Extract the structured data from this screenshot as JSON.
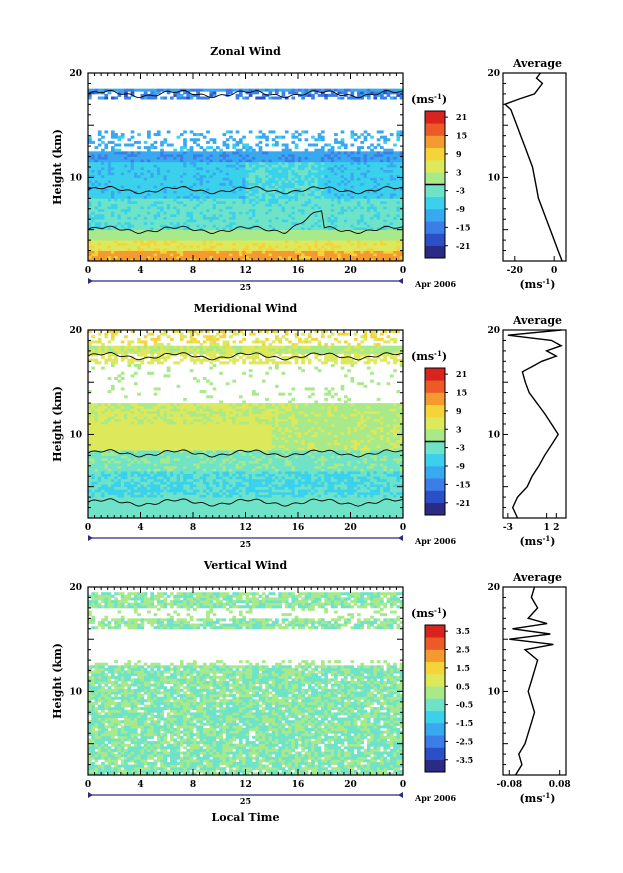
{
  "chart_data": [
    {
      "type": "heatmap",
      "title": "Zonal Wind",
      "ylabel": "Height (km)",
      "x_ticks": [
        "0",
        "4",
        "8",
        "12",
        "16",
        "20",
        "0"
      ],
      "y_ticks": [
        "20",
        "10"
      ],
      "ylim": [
        2,
        20
      ],
      "xlim": [
        0,
        24
      ],
      "day_label": "25",
      "month_label": "Apr 2006",
      "colorbar": {
        "unit_label": "(ms",
        "unit_exp": "-1",
        "unit_close": ")",
        "ticks": [
          "21",
          "15",
          "9",
          "3",
          "-3",
          "-9",
          "-15",
          "-21"
        ],
        "range": [
          -24,
          24
        ],
        "zero_line_value": 0
      },
      "average": {
        "title": "Average",
        "x_ticks": [
          "-20",
          "0"
        ],
        "xlim": [
          -26,
          6
        ],
        "unit_label": "(ms",
        "unit_exp": "-1",
        "unit_close": ")",
        "y_ticks": [
          "20",
          "10"
        ],
        "profile": [
          [
            2,
            4
          ],
          [
            3,
            2
          ],
          [
            4,
            0
          ],
          [
            5,
            -2
          ],
          [
            6,
            -4
          ],
          [
            7,
            -6
          ],
          [
            8,
            -8
          ],
          [
            9,
            -9
          ],
          [
            10,
            -10
          ],
          [
            11,
            -11
          ],
          [
            12,
            -13
          ],
          [
            13,
            -15
          ],
          [
            14,
            -17
          ],
          [
            15,
            -19
          ],
          [
            16,
            -21
          ],
          [
            16.5,
            -22
          ],
          [
            17,
            -25
          ],
          [
            17.5,
            -18
          ],
          [
            18,
            -10
          ],
          [
            18.5,
            -8
          ],
          [
            19,
            -6
          ],
          [
            19.5,
            -9
          ],
          [
            20,
            -7
          ]
        ]
      }
    },
    {
      "type": "heatmap",
      "title": "Meridional Wind",
      "ylabel": "Height (km)",
      "x_ticks": [
        "0",
        "4",
        "8",
        "12",
        "16",
        "20",
        "0"
      ],
      "y_ticks": [
        "20",
        "10"
      ],
      "ylim": [
        2,
        20
      ],
      "xlim": [
        0,
        24
      ],
      "day_label": "25",
      "month_label": "Apr 2006",
      "colorbar": {
        "unit_label": "(ms",
        "unit_exp": "-1",
        "unit_close": ")",
        "ticks": [
          "21",
          "15",
          "9",
          "3",
          "-3",
          "-9",
          "-15",
          "-21"
        ],
        "range": [
          -24,
          24
        ],
        "zero_line_value": 0
      },
      "average": {
        "title": "Average",
        "x_ticks": [
          "-3",
          "1",
          "2"
        ],
        "xlim": [
          -3.5,
          3
        ],
        "unit_label": "(ms",
        "unit_exp": "-1",
        "unit_close": ")",
        "y_ticks": [
          "20",
          "10"
        ],
        "profile": [
          [
            2,
            -2
          ],
          [
            3,
            -2.5
          ],
          [
            4,
            -2
          ],
          [
            5,
            -1
          ],
          [
            6,
            -0.5
          ],
          [
            7,
            0.2
          ],
          [
            8,
            0.8
          ],
          [
            9,
            1.5
          ],
          [
            10,
            2.2
          ],
          [
            11,
            1.5
          ],
          [
            12,
            0.8
          ],
          [
            13,
            0
          ],
          [
            14,
            -0.8
          ],
          [
            15,
            -1.2
          ],
          [
            16,
            -1.5
          ],
          [
            16.5,
            -0.5
          ],
          [
            17,
            0.5
          ],
          [
            17.5,
            2
          ],
          [
            18,
            1
          ],
          [
            18.5,
            2.5
          ],
          [
            19,
            1.5
          ],
          [
            19.5,
            -3
          ],
          [
            20,
            2.5
          ]
        ]
      }
    },
    {
      "type": "heatmap",
      "title": "Vertical Wind",
      "ylabel": "Height (km)",
      "xlabel": "Local Time",
      "x_ticks": [
        "0",
        "4",
        "8",
        "12",
        "16",
        "20",
        "0"
      ],
      "y_ticks": [
        "20",
        "10"
      ],
      "ylim": [
        2,
        20
      ],
      "xlim": [
        0,
        24
      ],
      "day_label": "25",
      "month_label": "Apr 2006",
      "colorbar": {
        "unit_label": "(ms",
        "unit_exp": "-1",
        "unit_close": ")",
        "ticks": [
          "3.5",
          "2.5",
          "1.5",
          "0.5",
          "-0.5",
          "-1.5",
          "-2.5",
          "-3.5"
        ],
        "range": [
          -4,
          4
        ]
      },
      "average": {
        "title": "Average",
        "x_ticks": [
          "-0.08",
          "0.08"
        ],
        "xlim": [
          -0.1,
          0.1
        ],
        "unit_label": "(ms",
        "unit_exp": "-1",
        "unit_close": ")",
        "y_ticks": [
          "20",
          "10"
        ],
        "profile": [
          [
            2,
            -0.06
          ],
          [
            3,
            -0.04
          ],
          [
            4,
            -0.05
          ],
          [
            5,
            -0.03
          ],
          [
            6,
            -0.02
          ],
          [
            7,
            -0.01
          ],
          [
            8,
            0.0
          ],
          [
            9,
            -0.01
          ],
          [
            10,
            -0.02
          ],
          [
            11,
            -0.01
          ],
          [
            12,
            0.0
          ],
          [
            13,
            0.01
          ],
          [
            14,
            -0.03
          ],
          [
            14.5,
            0.06
          ],
          [
            15,
            -0.08
          ],
          [
            15.5,
            0.05
          ],
          [
            16,
            -0.07
          ],
          [
            16.5,
            0.04
          ],
          [
            17,
            -0.02
          ],
          [
            18,
            0.01
          ],
          [
            19,
            -0.01
          ],
          [
            20,
            0.0
          ]
        ]
      }
    }
  ]
}
